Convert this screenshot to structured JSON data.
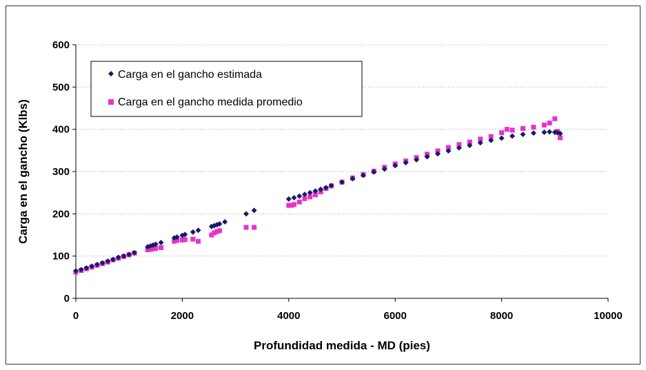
{
  "chart_data": {
    "type": "scatter",
    "title": "",
    "xlabel": "Profundidad medida - MD (pies)",
    "ylabel": "Carga en el gancho (Klbs)",
    "xlim": [
      0,
      10000
    ],
    "ylim": [
      0,
      600
    ],
    "x_ticks": [
      "0",
      "2000",
      "4000",
      "6000",
      "8000",
      "10000"
    ],
    "y_ticks": [
      "0",
      "100",
      "200",
      "300",
      "400",
      "500",
      "600"
    ],
    "grid": "horizontal dotted",
    "legend_position": "top-left",
    "colors": {
      "estimated": "#1a1a66",
      "measured": "#e633cc"
    },
    "series": [
      {
        "name": "Carga en el gancho estimada",
        "marker": "diamond",
        "points": [
          [
            0,
            65
          ],
          [
            100,
            68
          ],
          [
            200,
            72
          ],
          [
            300,
            76
          ],
          [
            400,
            80
          ],
          [
            500,
            84
          ],
          [
            600,
            88
          ],
          [
            700,
            92
          ],
          [
            800,
            97
          ],
          [
            900,
            100
          ],
          [
            1000,
            104
          ],
          [
            1100,
            108
          ],
          [
            1350,
            122
          ],
          [
            1400,
            124
          ],
          [
            1450,
            126
          ],
          [
            1500,
            128
          ],
          [
            1600,
            132
          ],
          [
            1850,
            143
          ],
          [
            1900,
            145
          ],
          [
            2000,
            149
          ],
          [
            2050,
            151
          ],
          [
            2200,
            157
          ],
          [
            2300,
            161
          ],
          [
            2550,
            170
          ],
          [
            2600,
            172
          ],
          [
            2650,
            174
          ],
          [
            2700,
            176
          ],
          [
            2800,
            181
          ],
          [
            3200,
            200
          ],
          [
            3350,
            208
          ],
          [
            4000,
            235
          ],
          [
            4100,
            238
          ],
          [
            4200,
            242
          ],
          [
            4300,
            246
          ],
          [
            4400,
            250
          ],
          [
            4500,
            254
          ],
          [
            4600,
            258
          ],
          [
            4700,
            262
          ],
          [
            4800,
            267
          ],
          [
            5000,
            275
          ],
          [
            5200,
            283
          ],
          [
            5400,
            291
          ],
          [
            5600,
            299
          ],
          [
            5800,
            306
          ],
          [
            6000,
            314
          ],
          [
            6200,
            321
          ],
          [
            6400,
            328
          ],
          [
            6600,
            335
          ],
          [
            6800,
            342
          ],
          [
            7000,
            349
          ],
          [
            7200,
            356
          ],
          [
            7400,
            362
          ],
          [
            7600,
            368
          ],
          [
            7800,
            374
          ],
          [
            8000,
            379
          ],
          [
            8200,
            384
          ],
          [
            8400,
            388
          ],
          [
            8600,
            391
          ],
          [
            8800,
            393
          ],
          [
            8900,
            394
          ],
          [
            9000,
            393
          ],
          [
            9050,
            392
          ],
          [
            9100,
            390
          ]
        ]
      },
      {
        "name": "Carga en el gancho medida promedio",
        "marker": "square",
        "points": [
          [
            0,
            62
          ],
          [
            100,
            66
          ],
          [
            200,
            70
          ],
          [
            300,
            74
          ],
          [
            400,
            78
          ],
          [
            500,
            82
          ],
          [
            600,
            86
          ],
          [
            700,
            91
          ],
          [
            800,
            95
          ],
          [
            900,
            99
          ],
          [
            1000,
            103
          ],
          [
            1100,
            107
          ],
          [
            1350,
            115
          ],
          [
            1400,
            116
          ],
          [
            1450,
            117
          ],
          [
            1500,
            118
          ],
          [
            1600,
            120
          ],
          [
            1850,
            135
          ],
          [
            1900,
            137
          ],
          [
            2000,
            138
          ],
          [
            2050,
            139
          ],
          [
            2200,
            140
          ],
          [
            2300,
            135
          ],
          [
            2550,
            150
          ],
          [
            2600,
            155
          ],
          [
            2650,
            158
          ],
          [
            2700,
            160
          ],
          [
            3200,
            168
          ],
          [
            3350,
            168
          ],
          [
            4000,
            220
          ],
          [
            4050,
            220
          ],
          [
            4100,
            222
          ],
          [
            4200,
            228
          ],
          [
            4300,
            236
          ],
          [
            4400,
            240
          ],
          [
            4500,
            245
          ],
          [
            4600,
            252
          ],
          [
            4700,
            260
          ],
          [
            4800,
            266
          ],
          [
            5000,
            275
          ],
          [
            5200,
            285
          ],
          [
            5400,
            293
          ],
          [
            5600,
            301
          ],
          [
            5800,
            310
          ],
          [
            6000,
            318
          ],
          [
            6200,
            325
          ],
          [
            6400,
            333
          ],
          [
            6600,
            341
          ],
          [
            6800,
            349
          ],
          [
            7000,
            357
          ],
          [
            7200,
            364
          ],
          [
            7400,
            370
          ],
          [
            7600,
            377
          ],
          [
            7800,
            383
          ],
          [
            8000,
            392
          ],
          [
            8100,
            400
          ],
          [
            8200,
            398
          ],
          [
            8400,
            402
          ],
          [
            8600,
            405
          ],
          [
            8800,
            410
          ],
          [
            8900,
            415
          ],
          [
            9000,
            425
          ],
          [
            9050,
            395
          ],
          [
            9100,
            380
          ]
        ]
      }
    ]
  }
}
